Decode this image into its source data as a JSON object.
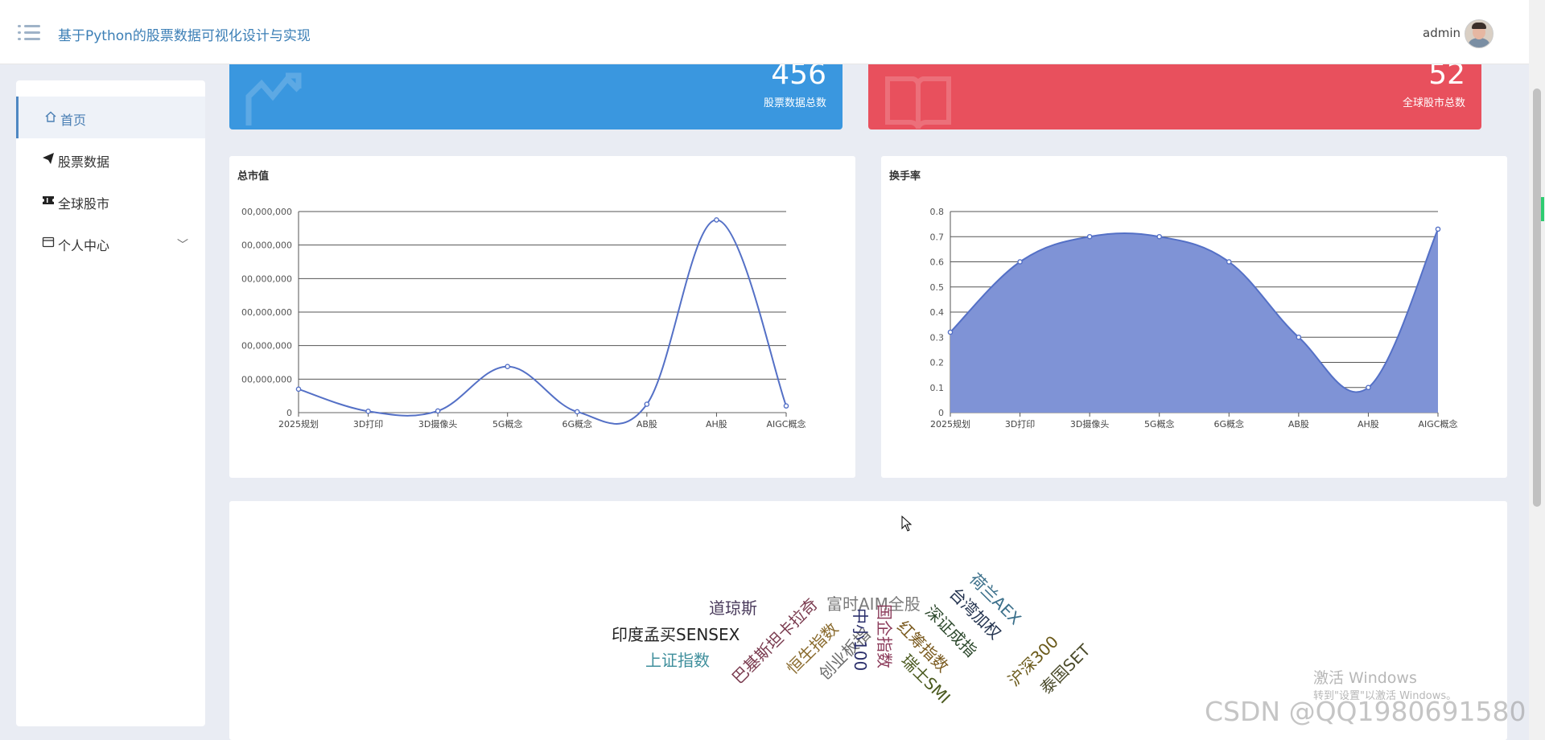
{
  "header": {
    "title": "基于Python的股票数据可视化设计与实现",
    "user": "admin"
  },
  "sidebar": {
    "items": [
      {
        "label": "首页",
        "icon": "home-icon"
      },
      {
        "label": "股票数据",
        "icon": "paper-plane-icon"
      },
      {
        "label": "全球股市",
        "icon": "ticket-icon"
      },
      {
        "label": "个人中心",
        "icon": "wallet-icon"
      }
    ]
  },
  "stats": {
    "stock_total": {
      "value": "456",
      "label": "股票数据总数"
    },
    "market_total": {
      "value": "52",
      "label": "全球股市总数"
    }
  },
  "colors": {
    "stat_blue": "#3a97df",
    "stat_red": "#e8505d",
    "line_series": "#5470c6",
    "area_fill": "#7f93d6"
  },
  "chart_data": [
    {
      "type": "line",
      "title": "总市值",
      "categories": [
        "2025规划",
        "3D打印",
        "3D摄像头",
        "5G概念",
        "6G概念",
        "AB股",
        "AH股",
        "AIGC概念"
      ],
      "values": [
        14000000000,
        800000000,
        1000000000,
        27500000000,
        500000000,
        5000000000,
        115000000000,
        4000000000
      ],
      "y_tick_labels": [
        "0",
        "00,000,000",
        "00,000,000",
        "00,000,000",
        "00,000,000",
        "00,000,000",
        "00,000,000"
      ],
      "ylim": [
        0,
        120000000000
      ],
      "smooth": true,
      "grid": true
    },
    {
      "type": "area",
      "title": "换手率",
      "categories": [
        "2025规划",
        "3D打印",
        "3D摄像头",
        "5G概念",
        "6G概念",
        "AB股",
        "AH股",
        "AIGC概念"
      ],
      "values": [
        0.32,
        0.6,
        0.7,
        0.7,
        0.6,
        0.3,
        0.1,
        0.73
      ],
      "y_tick_labels": [
        "0",
        "0.1",
        "0.2",
        "0.3",
        "0.4",
        "0.5",
        "0.6",
        "0.7",
        "0.8"
      ],
      "ylim": [
        0,
        0.8
      ],
      "smooth": true,
      "grid": true
    }
  ],
  "word_cloud": {
    "words": [
      {
        "text": "道琼斯",
        "color": "#4a3b5c"
      },
      {
        "text": "印度孟买SENSEX",
        "color": "#222222"
      },
      {
        "text": "上证指数",
        "color": "#3f8f9c"
      },
      {
        "text": "巴基斯坦卡拉奇",
        "color": "#7a3b4f"
      },
      {
        "text": "恒生指数",
        "color": "#8a6b2e"
      },
      {
        "text": "创业板指",
        "color": "#6b6b6b"
      },
      {
        "text": "富时AIM全股",
        "color": "#7b7b7b"
      },
      {
        "text": "中小100",
        "color": "#2b2f6b"
      },
      {
        "text": "国企指数",
        "color": "#8c3b5a"
      },
      {
        "text": "红筹指数",
        "color": "#7a5a1f"
      },
      {
        "text": "瑞士SMI",
        "color": "#4b5a1f"
      },
      {
        "text": "深证成指",
        "color": "#2e4a2e"
      },
      {
        "text": "台湾加权",
        "color": "#23334f"
      },
      {
        "text": "荷兰AEX",
        "color": "#3a6f8a"
      },
      {
        "text": "沪深300",
        "color": "#6b5a1a"
      },
      {
        "text": "泰国SET",
        "color": "#4a4a2a"
      }
    ]
  },
  "watermarks": {
    "activate_title": "激活 Windows",
    "activate_sub": "转到\"设置\"以激活 Windows。",
    "csdn": "CSDN @QQ1980691580"
  }
}
